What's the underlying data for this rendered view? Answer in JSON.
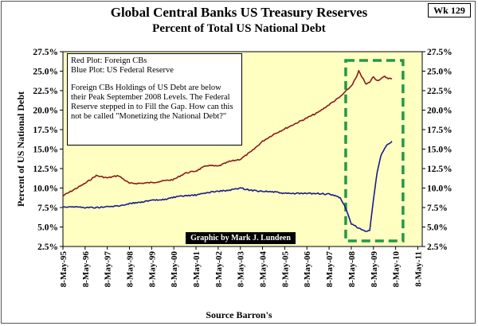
{
  "wk_label": "Wk 129",
  "source_label": "Source Barron's",
  "chart_data": {
    "type": "line",
    "title": "Global Central Banks US Treasury Reserves",
    "subtitle": "Percent of Total US National Debt",
    "ylabel": "Percent of US National Debt",
    "ylim": [
      2.5,
      27.5
    ],
    "ytick_labels": [
      "2.5%",
      "5.0%",
      "7.5%",
      "10.0%",
      "12.5%",
      "15.0%",
      "17.5%",
      "20.0%",
      "22.5%",
      "25.0%",
      "27.5%"
    ],
    "xtick_labels": [
      "8-May-95",
      "8-May-96",
      "8-May-97",
      "8-May-98",
      "8-May-99",
      "8-May-00",
      "8-May-01",
      "8-May-02",
      "8-May-03",
      "8-May-04",
      "8-May-05",
      "8-May-06",
      "8-May-07",
      "8-May-08",
      "8-May-09",
      "8-May-10",
      "8-May-11"
    ],
    "grid": false,
    "series": [
      {
        "name": "Foreign CBs",
        "color": "#8b1a1a",
        "x": [
          "1995-05",
          "1995-11",
          "1996-05",
          "1996-11",
          "1997-05",
          "1997-11",
          "1998-05",
          "1998-11",
          "1999-05",
          "1999-11",
          "2000-05",
          "2000-11",
          "2001-05",
          "2001-11",
          "2002-05",
          "2002-11",
          "2003-05",
          "2003-11",
          "2004-05",
          "2004-11",
          "2005-05",
          "2005-11",
          "2006-05",
          "2006-11",
          "2007-05",
          "2007-11",
          "2008-02",
          "2008-05",
          "2008-08",
          "2008-09",
          "2008-11",
          "2009-01",
          "2009-03",
          "2009-05",
          "2009-07",
          "2009-09",
          "2009-11",
          "2010-01",
          "2010-03"
        ],
        "values": [
          9.0,
          9.8,
          10.6,
          11.6,
          11.3,
          11.6,
          10.6,
          10.6,
          10.7,
          10.9,
          11.1,
          11.9,
          12.2,
          12.9,
          12.8,
          13.4,
          13.7,
          14.7,
          16.0,
          16.9,
          17.6,
          18.3,
          19.0,
          19.7,
          20.7,
          21.7,
          22.4,
          23.1,
          24.3,
          25.0,
          24.2,
          23.3,
          23.6,
          24.3,
          23.8,
          24.0,
          24.3,
          24.1,
          24.0
        ]
      },
      {
        "name": "US Federal Reserve",
        "color": "#1a1a8b",
        "x": [
          "1995-05",
          "1995-11",
          "1996-05",
          "1996-11",
          "1997-05",
          "1997-11",
          "1998-05",
          "1998-11",
          "1999-05",
          "1999-11",
          "2000-05",
          "2000-11",
          "2001-05",
          "2001-11",
          "2002-05",
          "2002-11",
          "2003-05",
          "2003-11",
          "2004-05",
          "2004-11",
          "2005-05",
          "2005-11",
          "2006-05",
          "2006-11",
          "2007-05",
          "2007-11",
          "2008-02",
          "2008-05",
          "2008-08",
          "2008-09",
          "2008-11",
          "2009-01",
          "2009-03",
          "2009-05",
          "2009-07",
          "2009-09",
          "2009-11",
          "2010-01",
          "2010-03"
        ],
        "values": [
          7.6,
          7.6,
          7.5,
          7.5,
          7.6,
          7.7,
          8.0,
          8.2,
          8.4,
          8.5,
          8.8,
          9.0,
          9.1,
          9.4,
          9.6,
          9.7,
          10.0,
          9.7,
          9.6,
          9.5,
          9.3,
          9.3,
          9.3,
          9.3,
          9.2,
          8.8,
          7.4,
          5.4,
          5.0,
          4.9,
          4.6,
          4.4,
          4.6,
          8.5,
          12.0,
          14.1,
          15.1,
          15.7,
          16.0
        ]
      }
    ],
    "annotations": {
      "legend_lines": [
        "Red Plot: Foreign CBs",
        "Blue Plot: US Federal Reserve"
      ],
      "note": "Foreign CBs Holdings of US Debt are below their Peak September 2008 Levels.  The Federal Reserve stepped in to Fill the Gap.  How can this not be called \"Monetizing the National Debt?\"",
      "credit": "Graphic by Mark J. Lundeen"
    }
  }
}
